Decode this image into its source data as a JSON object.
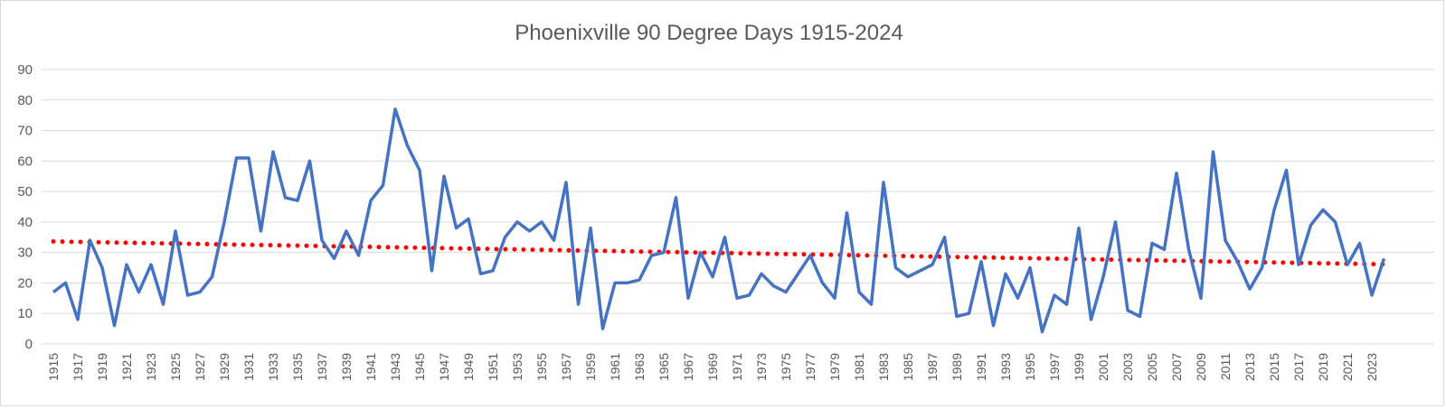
{
  "chart_data": {
    "type": "line",
    "title": "Phoenixville 90 Degree Days 1915-2024",
    "xlabel": "",
    "ylabel": "",
    "ylim": [
      0,
      90
    ],
    "yticks": [
      "0",
      "10",
      "20",
      "30",
      "40",
      "50",
      "60",
      "70",
      "80",
      "90"
    ],
    "xticks": [
      "1915",
      "1917",
      "1919",
      "1921",
      "1923",
      "1925",
      "1927",
      "1929",
      "1931",
      "1933",
      "1935",
      "1937",
      "1939",
      "1941",
      "1943",
      "1945",
      "1947",
      "1949",
      "1951",
      "1953",
      "1955",
      "1957",
      "1959",
      "1961",
      "1963",
      "1965",
      "1967",
      "1969",
      "1971",
      "1973",
      "1975",
      "1977",
      "1979",
      "1981",
      "1983",
      "1985",
      "1987",
      "1989",
      "1991",
      "1993",
      "1995",
      "1997",
      "1999",
      "2001",
      "2003",
      "2005",
      "2007",
      "2009",
      "2011",
      "2013",
      "2015",
      "2017",
      "2019",
      "2021",
      "2023"
    ],
    "grid": true,
    "legend": "none",
    "x_start": 1915,
    "x_end": 2024,
    "series": [
      {
        "color": "#4472C4",
        "style": "solid",
        "values": [
          17,
          20,
          8,
          34,
          25,
          6,
          26,
          17,
          26,
          13,
          37,
          16,
          17,
          22,
          40,
          61,
          61,
          37,
          63,
          48,
          47,
          60,
          34,
          28,
          37,
          29,
          47,
          52,
          77,
          65,
          57,
          24,
          55,
          38,
          41,
          23,
          24,
          35,
          40,
          37,
          40,
          34,
          53,
          13,
          38,
          5,
          20,
          20,
          21,
          29,
          30,
          48,
          15,
          30,
          22,
          35,
          15,
          16,
          23,
          19,
          17,
          23,
          29,
          20,
          15,
          43,
          17,
          13,
          53,
          25,
          22,
          24,
          26,
          35,
          9,
          10,
          27,
          6,
          23,
          15,
          25,
          4,
          16,
          13,
          38,
          8,
          22,
          40,
          11,
          9,
          33,
          31,
          56,
          31,
          15,
          63,
          34,
          27,
          18,
          25,
          44,
          57,
          26,
          39,
          44,
          40,
          26,
          33,
          16,
          28
        ]
      },
      {
        "color": "#FF0000",
        "style": "dotted",
        "trendline": "linear",
        "start": 33.6,
        "end": 26.1
      }
    ]
  },
  "colors": {
    "gridline": "#d9d9d9",
    "axis_text": "#595959",
    "border": "#d9d9d9"
  }
}
